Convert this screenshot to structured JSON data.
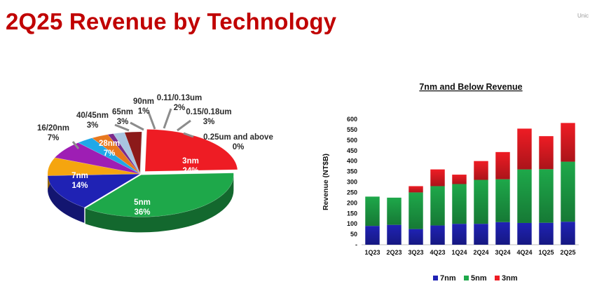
{
  "page": {
    "title": "2Q25 Revenue by Technology",
    "corner_tag": "Unic"
  },
  "chart_data": [
    {
      "type": "pie",
      "style": "3d-exploded",
      "slices": [
        {
          "label": "3nm",
          "value": 24,
          "value_label": "24%",
          "color": "#ee1c24"
        },
        {
          "label": "5nm",
          "value": 36,
          "value_label": "36%",
          "color": "#1ea84a"
        },
        {
          "label": "7nm",
          "value": 14,
          "value_label": "14%",
          "color": "#1f22b4"
        },
        {
          "label": "16/20nm",
          "value": 7,
          "value_label": "7%",
          "color": "#f5a50f"
        },
        {
          "label": "28nm",
          "value": 7,
          "value_label": "7%",
          "color": "#9e1eb4"
        },
        {
          "label": "40/45nm",
          "value": 3,
          "value_label": "3%",
          "color": "#20a8e8"
        },
        {
          "label": "65nm",
          "value": 3,
          "value_label": "3%",
          "color": "#e8781e"
        },
        {
          "label": "90nm",
          "value": 1,
          "value_label": "1%",
          "color": "#7a2a8c"
        },
        {
          "label": "0.11/0.13um",
          "value": 2,
          "value_label": "2%",
          "color": "#a8c4e0"
        },
        {
          "label": "0.15/0.18um",
          "value": 3,
          "value_label": "3%",
          "color": "#8c1a1a"
        },
        {
          "label": "0.25um and above",
          "value": 0,
          "value_label": "0%",
          "color": "#d8d8d8"
        }
      ]
    },
    {
      "type": "bar",
      "stacked": true,
      "title": "7nm and Below Revenue",
      "ylabel": "Revenue (NT$B)",
      "ylim": [
        0,
        600
      ],
      "yticks": [
        0,
        50,
        100,
        150,
        200,
        250,
        300,
        350,
        400,
        450,
        500,
        550,
        600
      ],
      "ytick_labels": [
        "-",
        "50",
        "100",
        "150",
        "200",
        "250",
        "300",
        "350",
        "400",
        "450",
        "500",
        "550",
        "600"
      ],
      "categories": [
        "1Q23",
        "2Q23",
        "3Q23",
        "4Q23",
        "1Q24",
        "2Q24",
        "3Q24",
        "4Q24",
        "1Q25",
        "2Q25"
      ],
      "legend_position": "bottom",
      "series": [
        {
          "name": "7nm",
          "color": "#1f22b4",
          "values": [
            90,
            95,
            75,
            92,
            100,
            100,
            108,
            104,
            105,
            110
          ]
        },
        {
          "name": "5nm",
          "color": "#1ea84a",
          "values": [
            140,
            130,
            175,
            188,
            190,
            210,
            205,
            256,
            256,
            287
          ]
        },
        {
          "name": "3nm",
          "color": "#ee1c24",
          "values": [
            0,
            0,
            30,
            80,
            45,
            90,
            130,
            195,
            158,
            185
          ]
        }
      ]
    }
  ]
}
